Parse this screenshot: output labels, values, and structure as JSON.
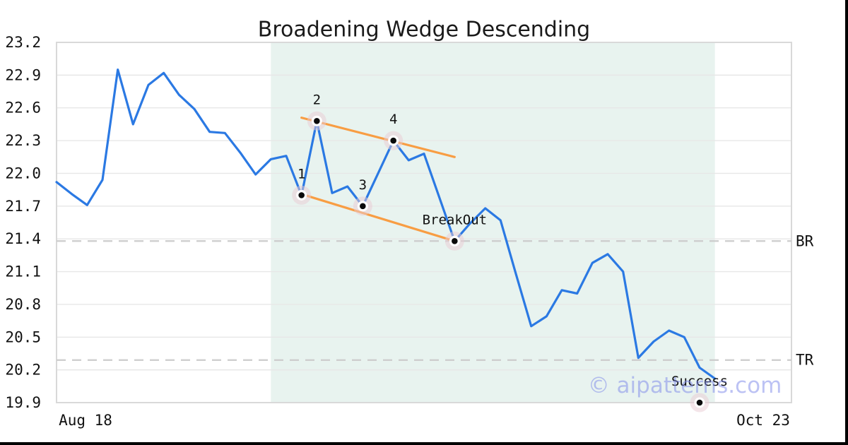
{
  "watermark": "© aipatterns.com",
  "chart_data": {
    "type": "line",
    "title": "Broadening Wedge Descending",
    "xlabel": "",
    "ylabel": "",
    "ylim": [
      19.9,
      23.2
    ],
    "grid": true,
    "legend_position": "none",
    "y_ticks": [
      "19.9",
      "20.2",
      "20.5",
      "20.8",
      "21.1",
      "21.4",
      "21.7",
      "22.0",
      "22.3",
      "22.6",
      "22.9",
      "23.2"
    ],
    "x_ticks": [
      {
        "label": "Aug 18"
      },
      {
        "label": "Oct 23"
      }
    ],
    "series": [
      {
        "name": "price",
        "values": [
          21.92,
          21.81,
          21.71,
          21.94,
          22.95,
          22.45,
          22.81,
          22.92,
          22.72,
          22.59,
          22.38,
          22.37,
          22.19,
          21.99,
          22.13,
          22.16,
          21.8,
          22.48,
          21.82,
          21.88,
          21.7,
          22.0,
          22.3,
          22.12,
          22.18,
          21.78,
          21.38,
          21.54,
          21.68,
          21.57,
          21.08,
          20.6,
          20.69,
          20.93,
          20.9,
          21.18,
          21.26,
          21.1,
          20.31,
          20.46,
          20.56,
          20.5,
          20.22,
          20.12
        ]
      }
    ],
    "pattern_region": {
      "from_index": 14,
      "to_index": 43
    },
    "trendlines": [
      {
        "name": "upper-wedge-line",
        "from_index": 16,
        "from_value": 22.51,
        "to_index": 26,
        "to_value": 22.15
      },
      {
        "name": "lower-wedge-line",
        "from_index": 16,
        "from_value": 21.81,
        "to_index": 26,
        "to_value": 21.38
      }
    ],
    "levels": [
      {
        "label": "BR",
        "value": 21.38
      },
      {
        "label": "TR",
        "value": 20.29
      }
    ],
    "annotations": [
      {
        "label": "1",
        "index": 16,
        "value": 21.8
      },
      {
        "label": "2",
        "index": 17,
        "value": 22.48
      },
      {
        "label": "3",
        "index": 20,
        "value": 21.7
      },
      {
        "label": "4",
        "index": 22,
        "value": 22.3
      },
      {
        "label": "BreakOut",
        "index": 26,
        "value": 21.38
      },
      {
        "label": "Success",
        "index": 42,
        "value": 19.9
      }
    ],
    "colors": {
      "line": "#2b79e3",
      "trend": "#f89d43",
      "region": "#e8f3ef",
      "grid": "#e7e7e7",
      "border": "#d9d9d9",
      "dashed_level": "#cccccc",
      "marker_halo": "#e9ccd4",
      "marker_ring": "#ffffff",
      "marker_dot": "#0a0a0a",
      "text": "#111111",
      "watermark": "#7b87ea",
      "frame_bar": "#000000"
    }
  }
}
